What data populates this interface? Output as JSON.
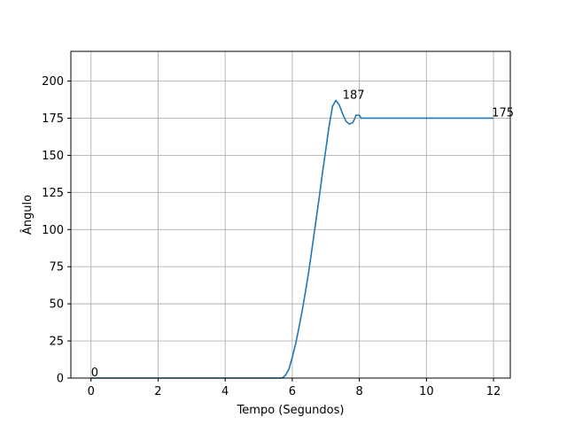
{
  "chart_data": {
    "type": "line",
    "title": "",
    "xlabel": "Tempo (Segundos)",
    "ylabel": "Ângulo",
    "xlim": [
      -0.6,
      12.5
    ],
    "ylim": [
      0,
      220
    ],
    "xticks": [
      0,
      2,
      4,
      6,
      8,
      10,
      12
    ],
    "yticks": [
      0,
      25,
      50,
      75,
      100,
      125,
      150,
      175,
      200
    ],
    "grid": true,
    "line_color": "#1f77b4",
    "series": [
      {
        "x": [
          0,
          5.7,
          5.8,
          5.9,
          6.0,
          6.1,
          6.2,
          6.3,
          6.4,
          6.5,
          6.6,
          6.7,
          6.8,
          6.9,
          7.0,
          7.1,
          7.2,
          7.3,
          7.4,
          7.5,
          7.6,
          7.7,
          7.8,
          7.85,
          7.9,
          8.0,
          8.05,
          8.1,
          8.15,
          8.2,
          8.4,
          12
        ],
        "y": [
          0,
          0,
          2,
          6,
          14,
          23,
          34,
          46,
          59,
          73,
          89,
          105,
          121,
          138,
          154,
          170,
          183,
          187,
          184,
          178,
          173,
          171,
          172,
          174,
          177,
          177,
          175,
          175,
          175,
          175,
          175,
          175
        ]
      }
    ],
    "annotations": [
      {
        "text": "0",
        "x": 0,
        "y": 0
      },
      {
        "text": "187",
        "x": 7.5,
        "y": 187
      },
      {
        "text": "175",
        "x": 11.95,
        "y": 175
      }
    ]
  }
}
